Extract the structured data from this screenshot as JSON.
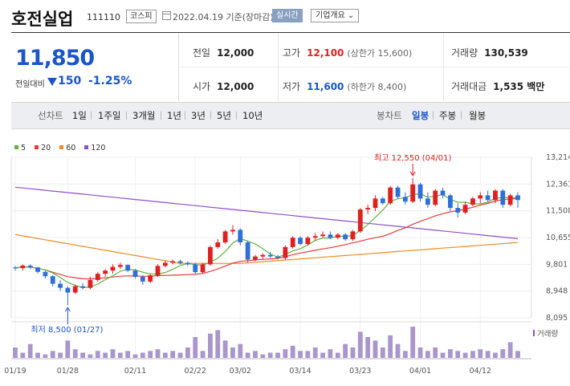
{
  "header": {
    "stock_name": "호전실업",
    "stock_code": "111110",
    "market": "코스피",
    "date_text": "2022.04.19 기준(장마감)",
    "realtime_label": "실시간",
    "company_label": "기업개요 ⌄"
  },
  "price": {
    "current": "11,850",
    "prev_label": "전일대비",
    "change": "150",
    "change_pct": "-1.25%",
    "color_down": "#1a56c8"
  },
  "stats": {
    "prev_close_label": "전일",
    "prev_close": "12,000",
    "open_label": "시가",
    "open": "12,000",
    "high_label": "고가",
    "high": "12,100",
    "upper_limit": "(상한가 15,600)",
    "low_label": "저가",
    "low": "11,600",
    "lower_limit": "(하한가 8,400)",
    "volume_label": "거래량",
    "volume": "130,539",
    "amount_label": "거래대금",
    "amount": "1,535 백만"
  },
  "period_bar": {
    "line_label": "선차트",
    "line_items": [
      "1일",
      "1주일",
      "3개월",
      "1년",
      "3년",
      "5년",
      "10년"
    ],
    "candle_label": "봉차트",
    "candle_items": [
      "일봉",
      "주봉",
      "월봉"
    ],
    "active_candle": "일봉"
  },
  "chart_data": {
    "type": "candlestick",
    "legend": [
      {
        "name": "5",
        "color": "#5fb340"
      },
      {
        "name": "20",
        "color": "#e63c3c"
      },
      {
        "name": "60",
        "color": "#f08a24"
      },
      {
        "name": "120",
        "color": "#8f50c8"
      }
    ],
    "y_ticks": [
      "13,214",
      "12,361",
      "11,508",
      "10,655",
      "9,801",
      "8,948",
      "8,095"
    ],
    "y_range": [
      8095,
      13214
    ],
    "x_ticks": [
      "01/19",
      "01/28",
      "02/11",
      "02/22",
      "03/02",
      "03/14",
      "03/23",
      "04/01",
      "04/12"
    ],
    "x_tick_index": [
      0,
      7,
      16,
      24,
      30,
      38,
      46,
      54,
      62
    ],
    "high_annotation": "최고 12,550 (04/01)",
    "low_annotation": "최저 8,500 (01/27)",
    "high_index": 53,
    "high_value": 12550,
    "low_index": 7,
    "low_value": 8500,
    "volume_label": "거래량",
    "up_color": "#e02020",
    "down_color": "#2f6fd8",
    "candles": [
      [
        9700,
        9750,
        9600,
        9680
      ],
      [
        9680,
        9800,
        9600,
        9760
      ],
      [
        9760,
        9800,
        9650,
        9700
      ],
      [
        9700,
        9720,
        9500,
        9560
      ],
      [
        9560,
        9600,
        9350,
        9420
      ],
      [
        9420,
        9450,
        9100,
        9180
      ],
      [
        9180,
        9300,
        8950,
        9050
      ],
      [
        9050,
        9100,
        8500,
        8900
      ],
      [
        8900,
        9150,
        8850,
        9100
      ],
      [
        9100,
        9200,
        9000,
        9050
      ],
      [
        9050,
        9400,
        9000,
        9300
      ],
      [
        9300,
        9550,
        9250,
        9500
      ],
      [
        9500,
        9650,
        9400,
        9600
      ],
      [
        9600,
        9800,
        9500,
        9720
      ],
      [
        9720,
        9850,
        9650,
        9780
      ],
      [
        9780,
        9800,
        9550,
        9600
      ],
      [
        9600,
        9650,
        9350,
        9400
      ],
      [
        9400,
        9450,
        9150,
        9250
      ],
      [
        9250,
        9500,
        9200,
        9450
      ],
      [
        9450,
        9800,
        9400,
        9750
      ],
      [
        9750,
        9900,
        9700,
        9850
      ],
      [
        9850,
        9950,
        9800,
        9900
      ],
      [
        9900,
        9950,
        9800,
        9850
      ],
      [
        9850,
        9900,
        9750,
        9800
      ],
      [
        9800,
        9850,
        9500,
        9550
      ],
      [
        9550,
        9850,
        9500,
        9800
      ],
      [
        9800,
        10400,
        9750,
        10350
      ],
      [
        10350,
        10600,
        10300,
        10500
      ],
      [
        10500,
        10900,
        10450,
        10850
      ],
      [
        10850,
        11050,
        10750,
        10900
      ],
      [
        10900,
        10950,
        10400,
        10500
      ],
      [
        10500,
        10550,
        9850,
        9950
      ],
      [
        9950,
        10100,
        9900,
        10050
      ],
      [
        10050,
        10150,
        9950,
        10100
      ],
      [
        10100,
        10200,
        10000,
        10050
      ],
      [
        10050,
        10100,
        9950,
        10000
      ],
      [
        10000,
        10400,
        9950,
        10350
      ],
      [
        10350,
        10700,
        10300,
        10650
      ],
      [
        10650,
        10700,
        10400,
        10450
      ],
      [
        10450,
        10700,
        10400,
        10650
      ],
      [
        10650,
        10800,
        10550,
        10700
      ],
      [
        10700,
        10850,
        10650,
        10750
      ],
      [
        10750,
        10850,
        10600,
        10650
      ],
      [
        10650,
        10800,
        10600,
        10750
      ],
      [
        10750,
        10800,
        10550,
        10600
      ],
      [
        10600,
        10900,
        10550,
        10850
      ],
      [
        10850,
        11600,
        10800,
        11550
      ],
      [
        11550,
        11700,
        11400,
        11600
      ],
      [
        11600,
        12000,
        11500,
        11900
      ],
      [
        11900,
        11950,
        11700,
        11750
      ],
      [
        11750,
        12300,
        11700,
        12250
      ],
      [
        12250,
        12300,
        11900,
        11950
      ],
      [
        11950,
        12100,
        11700,
        11800
      ],
      [
        11800,
        12550,
        11750,
        12350
      ],
      [
        12350,
        12400,
        11800,
        11900
      ],
      [
        11900,
        12100,
        11600,
        11700
      ],
      [
        11700,
        12200,
        11650,
        12150
      ],
      [
        12150,
        12250,
        11900,
        12000
      ],
      [
        12000,
        12050,
        11500,
        11600
      ],
      [
        11600,
        11750,
        11300,
        11450
      ],
      [
        11450,
        11800,
        11400,
        11700
      ],
      [
        11700,
        11950,
        11650,
        11900
      ],
      [
        11900,
        12100,
        11750,
        12000
      ],
      [
        12000,
        12150,
        11800,
        11850
      ],
      [
        11850,
        12200,
        11750,
        12150
      ],
      [
        12150,
        12200,
        11600,
        11700
      ],
      [
        11700,
        12050,
        11650,
        12000
      ],
      [
        12000,
        12100,
        11600,
        11850
      ]
    ],
    "volumes": [
      6,
      3,
      8,
      3,
      2,
      4,
      3,
      10,
      5,
      3,
      2,
      4,
      3,
      5,
      3,
      4,
      2,
      3,
      4,
      5,
      3,
      4,
      3,
      6,
      12,
      4,
      14,
      16,
      10,
      6,
      8,
      3,
      4,
      2,
      3,
      3,
      5,
      7,
      4,
      4,
      6,
      3,
      5,
      3,
      8,
      6,
      15,
      12,
      10,
      6,
      13,
      8,
      4,
      18,
      6,
      4,
      6,
      3,
      5,
      4,
      3,
      4,
      5,
      4,
      3,
      5,
      9,
      4
    ]
  }
}
